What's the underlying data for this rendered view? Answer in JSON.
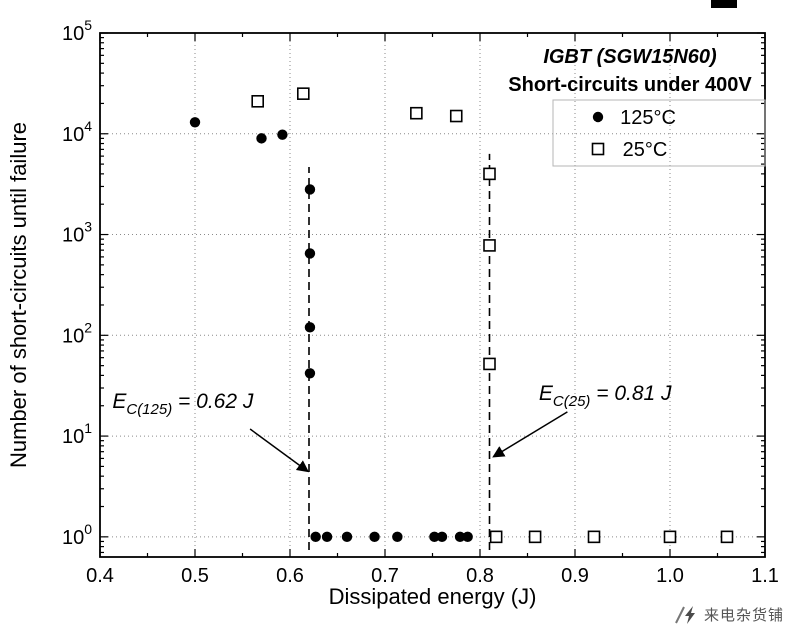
{
  "watermark": {
    "text": "来电杂货铺"
  },
  "chart_data": {
    "type": "scatter",
    "title": "IGBT (SGW15N60)",
    "subtitle": "Short-circuits under 400V",
    "xlabel": "Dissipated energy (J)",
    "ylabel": "Number of short-circuits until failure",
    "x_axis": {
      "min": 0.4,
      "max": 1.1,
      "tick_labels": [
        "0.4",
        "0.5",
        "0.6",
        "0.7",
        "0.8",
        "0.9",
        "1.0",
        "1.1"
      ]
    },
    "y_axis": {
      "scale": "log",
      "min_exp": -0.2,
      "max_exp": 5,
      "tick_exponents": [
        0,
        1,
        2,
        3,
        4,
        5
      ],
      "tick_label_base": "10"
    },
    "grid": {
      "style": "dotted",
      "color": "#8a8a8a"
    },
    "legend": {
      "position": "top-right",
      "entries": [
        "125°C",
        "25°C"
      ]
    },
    "series": [
      {
        "name": "125°C",
        "marker": "filled-circle",
        "color": "#000000",
        "points": [
          [
            0.5,
            13000
          ],
          [
            0.57,
            9000
          ],
          [
            0.592,
            9800
          ],
          [
            0.621,
            2800
          ],
          [
            0.621,
            650
          ],
          [
            0.621,
            120
          ],
          [
            0.621,
            42
          ],
          [
            0.627,
            1
          ],
          [
            0.639,
            1
          ],
          [
            0.66,
            1
          ],
          [
            0.689,
            1
          ],
          [
            0.713,
            1
          ],
          [
            0.752,
            1
          ],
          [
            0.76,
            1
          ],
          [
            0.779,
            1
          ],
          [
            0.787,
            1
          ]
        ]
      },
      {
        "name": "25°C",
        "marker": "open-square",
        "color": "#000000",
        "points": [
          [
            0.566,
            21000
          ],
          [
            0.614,
            25000
          ],
          [
            0.733,
            16000
          ],
          [
            0.775,
            15000
          ],
          [
            0.81,
            4000
          ],
          [
            0.81,
            780
          ],
          [
            0.81,
            52
          ],
          [
            0.817,
            1
          ],
          [
            0.858,
            1
          ],
          [
            0.92,
            1
          ],
          [
            1.0,
            1
          ],
          [
            1.06,
            1
          ]
        ]
      }
    ],
    "threshold_lines": [
      {
        "x": 0.62,
        "bottom_exp": -0.13,
        "top_exp": 3.67,
        "style": "dashed"
      },
      {
        "x": 0.81,
        "bottom_exp": -0.13,
        "top_exp": 3.8,
        "style": "dashed"
      }
    ],
    "annotations": [
      {
        "id": "ec125",
        "base": "E",
        "sub": "C(125)",
        "rest": " = 0.62 J",
        "x": 0.413,
        "y_exp": 1.28,
        "arrow": {
          "from": [
            0.558,
            1.07
          ],
          "to": [
            0.618,
            0.655
          ]
        }
      },
      {
        "id": "ec25",
        "base": "E",
        "sub": "C(25)",
        "rest": " = 0.81 J",
        "x": 0.862,
        "y_exp": 1.36,
        "arrow": {
          "from": [
            0.892,
            1.24
          ],
          "to": [
            0.815,
            0.8
          ]
        }
      }
    ]
  }
}
